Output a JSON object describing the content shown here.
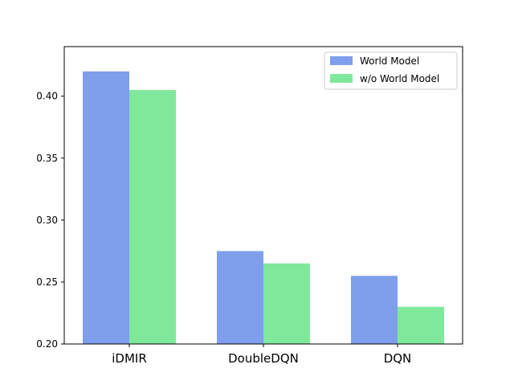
{
  "chart_data": {
    "type": "bar",
    "title": "",
    "xlabel": "",
    "ylabel": "",
    "categories": [
      "iDMIR",
      "DoubleDQN",
      "DQN"
    ],
    "series": [
      {
        "name": "World Model",
        "values": [
          0.42,
          0.275,
          0.255
        ],
        "color": "#7f9fec"
      },
      {
        "name": "w/o World Model",
        "values": [
          0.405,
          0.265,
          0.23
        ],
        "color": "#7fe89b"
      }
    ],
    "ylim": [
      0.2,
      0.44
    ],
    "yticks": [
      "0.20",
      "0.25",
      "0.30",
      "0.35",
      "0.40"
    ],
    "grid": false,
    "legend_position": "top-right"
  }
}
